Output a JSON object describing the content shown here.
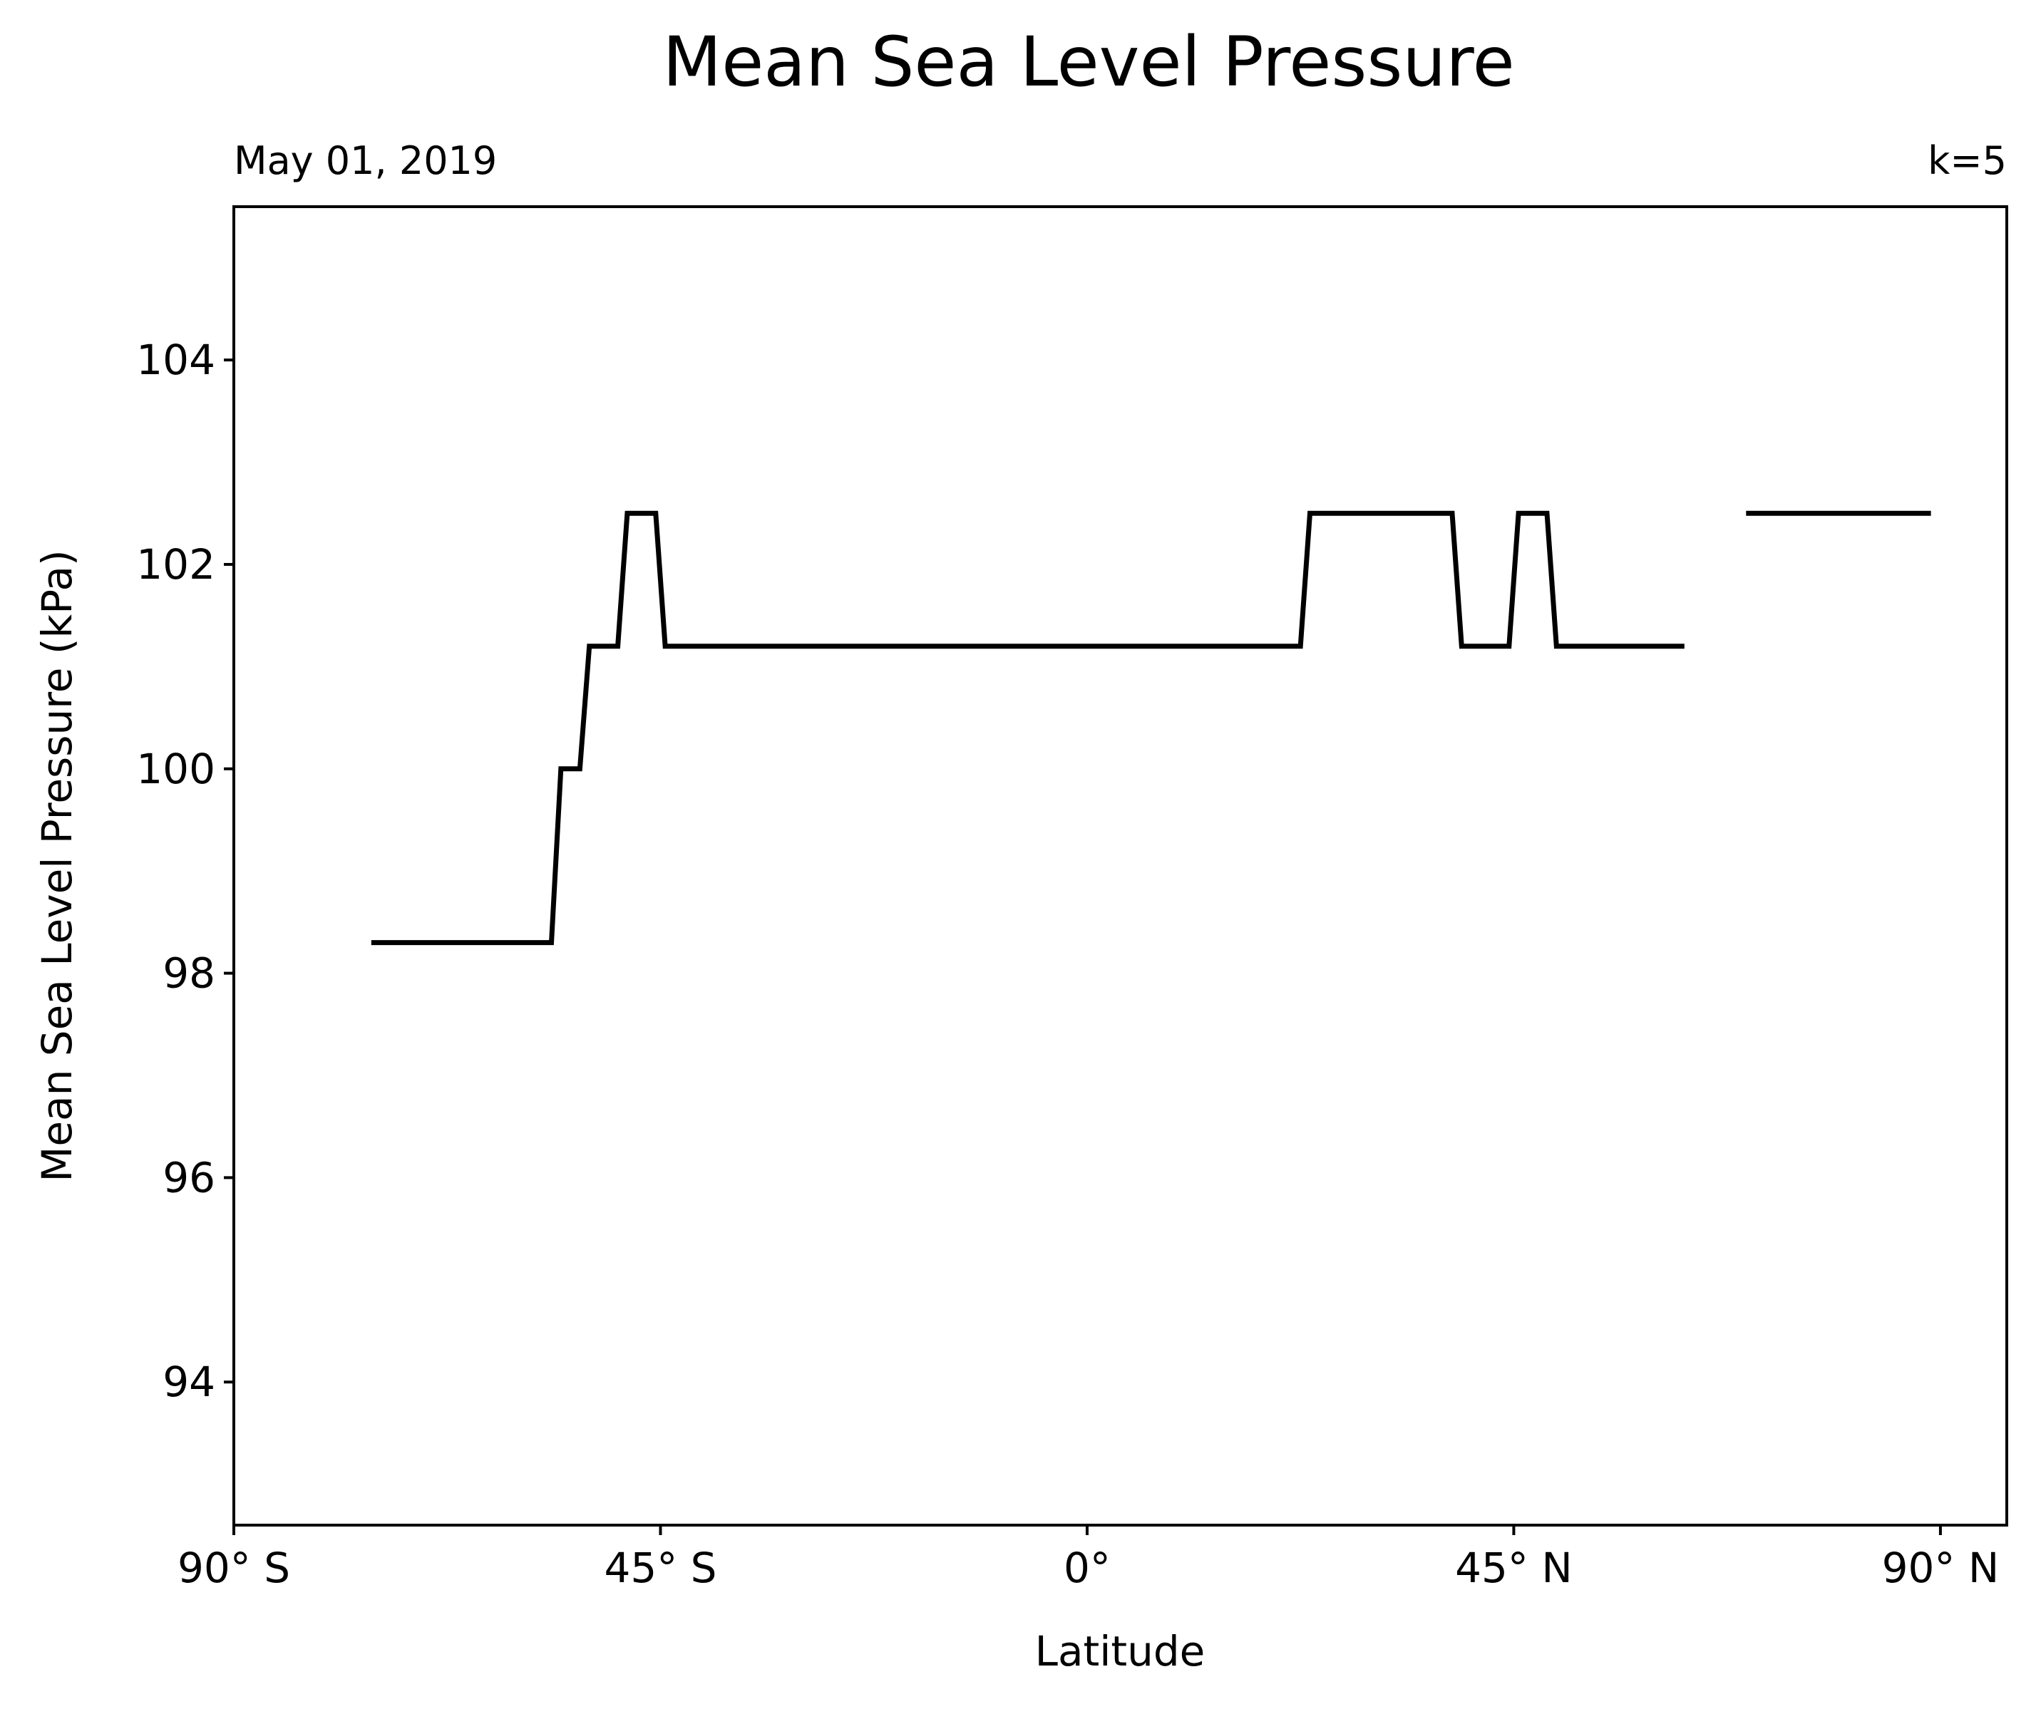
{
  "chart_data": {
    "type": "line",
    "title": "Mean Sea Level Pressure",
    "subtitle_left": "May 01, 2019",
    "subtitle_right": "k=5",
    "xlabel": "Latitude",
    "ylabel": "Mean Sea Level Pressure (kPa)",
    "xlim": [
      -90,
      97
    ],
    "ylim": [
      92.6,
      105.5
    ],
    "xticks": [
      {
        "value": -90,
        "label": "90° S"
      },
      {
        "value": -45,
        "label": "45° S"
      },
      {
        "value": 0,
        "label": "0°"
      },
      {
        "value": 45,
        "label": "45° N"
      },
      {
        "value": 90,
        "label": "90° N"
      }
    ],
    "yticks": [
      {
        "value": 94,
        "label": "94"
      },
      {
        "value": 96,
        "label": "96"
      },
      {
        "value": 98,
        "label": "98"
      },
      {
        "value": 100,
        "label": "100"
      },
      {
        "value": 102,
        "label": "102"
      },
      {
        "value": 104,
        "label": "104"
      }
    ],
    "grid": false,
    "legend": "none",
    "colors": {
      "line": "#000000",
      "background": "#ffffff"
    },
    "series": [
      {
        "color": "#000000",
        "segments": [
          [
            {
              "x": -75.5,
              "y": 98.3
            },
            {
              "x": -56.5,
              "y": 98.3
            },
            {
              "x": -55.5,
              "y": 100.0
            },
            {
              "x": -53.5,
              "y": 100.0
            },
            {
              "x": -52.5,
              "y": 101.2
            },
            {
              "x": -49.5,
              "y": 101.2
            },
            {
              "x": -48.5,
              "y": 102.5
            },
            {
              "x": -45.5,
              "y": 102.5
            },
            {
              "x": -44.5,
              "y": 101.2
            },
            {
              "x": 22.5,
              "y": 101.2
            },
            {
              "x": 23.5,
              "y": 102.5
            },
            {
              "x": 38.5,
              "y": 102.5
            },
            {
              "x": 39.5,
              "y": 101.2
            },
            {
              "x": 44.5,
              "y": 101.2
            },
            {
              "x": 45.5,
              "y": 102.5
            },
            {
              "x": 48.5,
              "y": 102.5
            },
            {
              "x": 49.5,
              "y": 101.2
            },
            {
              "x": 63.0,
              "y": 101.2
            }
          ],
          [
            {
              "x": 69.5,
              "y": 102.5
            },
            {
              "x": 89.0,
              "y": 102.5
            }
          ]
        ]
      }
    ]
  }
}
